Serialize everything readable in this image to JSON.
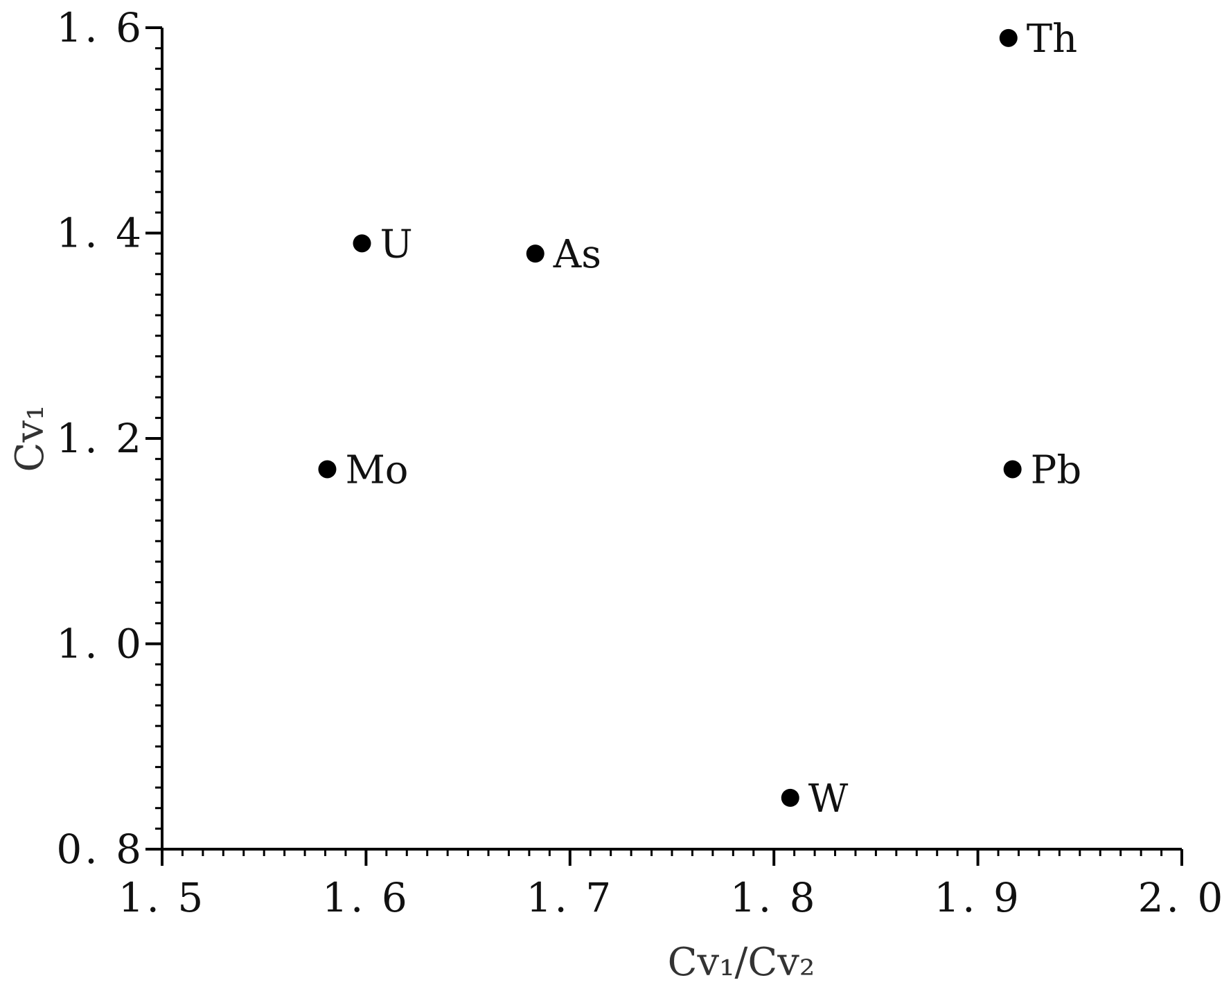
{
  "chart_data": {
    "type": "scatter",
    "title": "",
    "xlabel": "Cv₁/Cv₂",
    "ylabel": "Cv₁",
    "xlim": [
      1.5,
      2.0
    ],
    "ylim": [
      0.8,
      1.6
    ],
    "x_ticks": [
      1.5,
      1.6,
      1.7,
      1.8,
      1.9,
      2.0
    ],
    "x_tick_labels": [
      "1. 5",
      "1. 6",
      "1. 7",
      "1. 8",
      "1. 9",
      "2. 0"
    ],
    "y_ticks": [
      0.8,
      1.0,
      1.2,
      1.4,
      1.6
    ],
    "y_tick_labels": [
      "0. 8",
      "1. 0",
      "1. 2",
      "1. 4",
      "1. 6"
    ],
    "grid": false,
    "legend": "none",
    "marker_color": "#000000",
    "points": [
      {
        "label": "Th",
        "x": 1.915,
        "y": 1.59
      },
      {
        "label": "U",
        "x": 1.598,
        "y": 1.39
      },
      {
        "label": "As",
        "x": 1.683,
        "y": 1.38
      },
      {
        "label": "Mo",
        "x": 1.581,
        "y": 1.17
      },
      {
        "label": "Pb",
        "x": 1.917,
        "y": 1.17
      },
      {
        "label": "W",
        "x": 1.808,
        "y": 0.85
      }
    ]
  }
}
